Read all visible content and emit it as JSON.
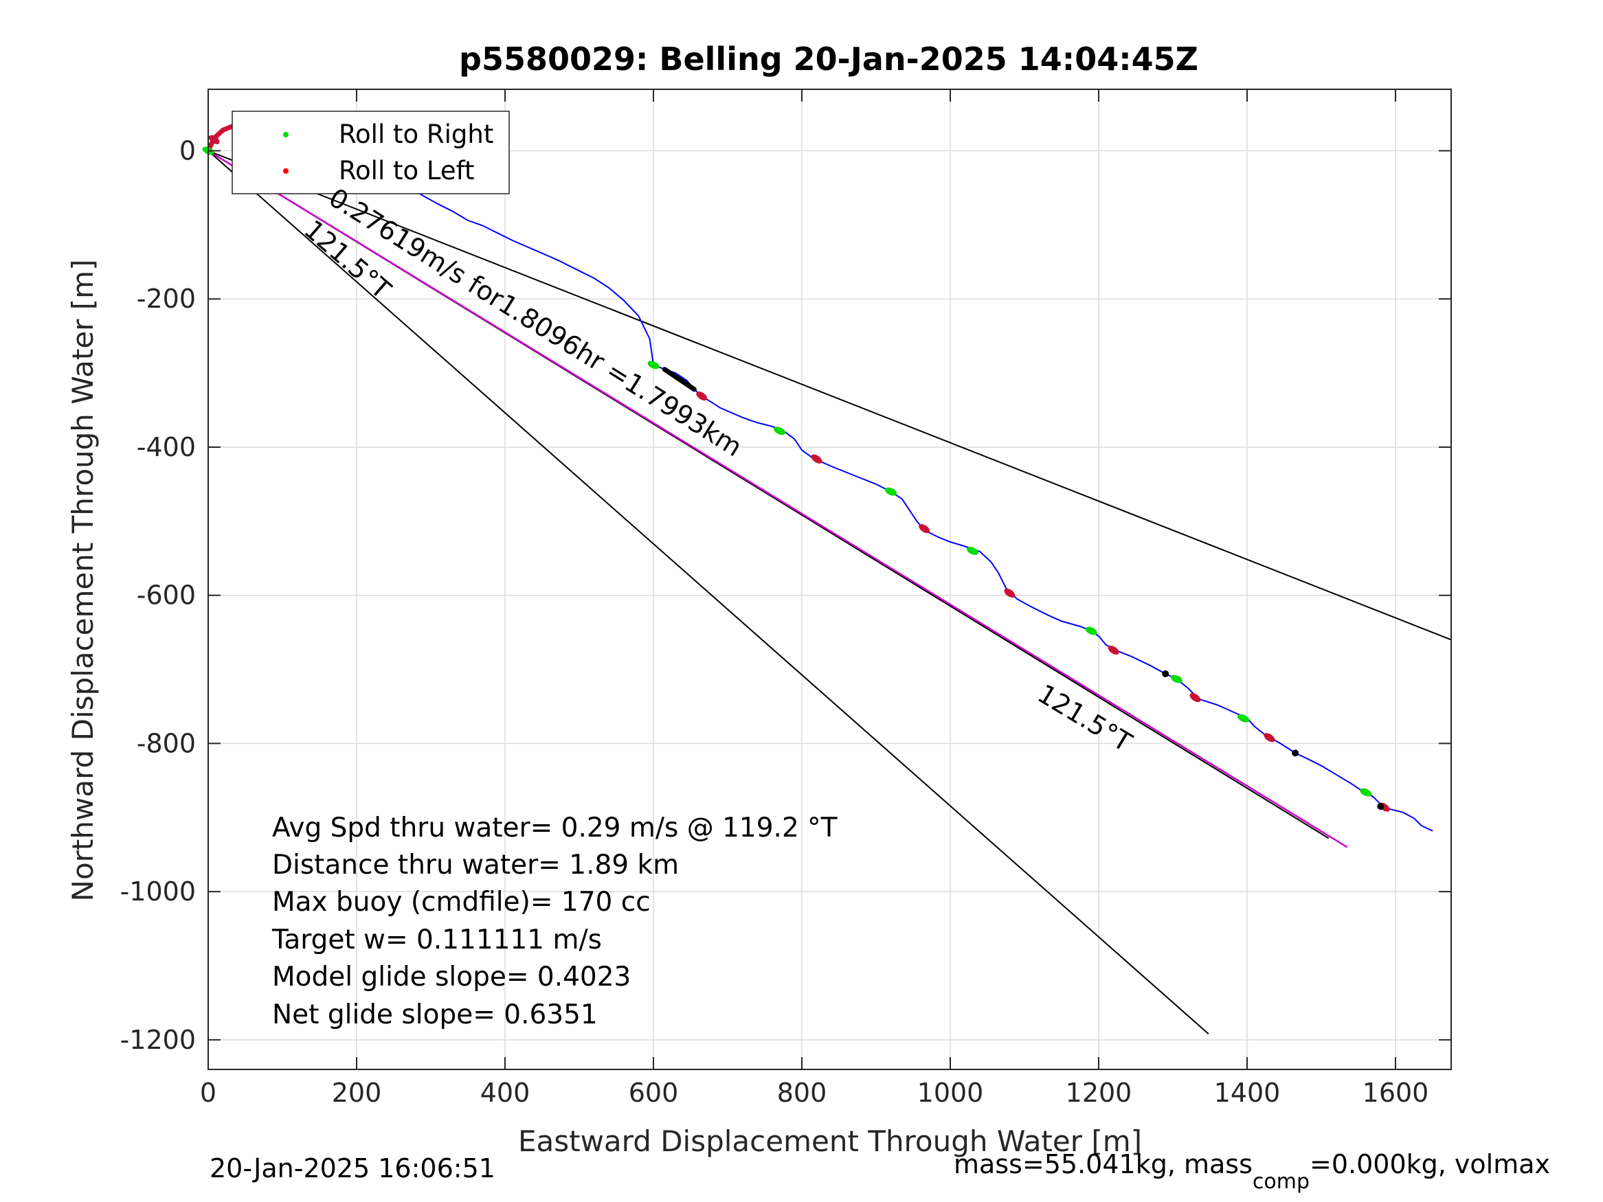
{
  "chart_data": {
    "type": "line",
    "title": "p5580029: Belling 20-Jan-2025 14:04:45Z",
    "xlabel": "Eastward Displacement Through Water [m]",
    "ylabel": "Northward Displacement Through Water [m]",
    "xlim": [
      0,
      1675
    ],
    "ylim": [
      -1240,
      83
    ],
    "xticks": [
      0,
      200,
      400,
      600,
      800,
      1000,
      1200,
      1400,
      1600
    ],
    "yticks": [
      0,
      -200,
      -400,
      -600,
      -800,
      -1000,
      -1200
    ],
    "grid": true,
    "legend": {
      "placement": "top-left",
      "entries": [
        {
          "label": "Roll to Right",
          "color": "#00dd00"
        },
        {
          "label": "Roll to Left",
          "color": "#ff0000"
        }
      ]
    },
    "colors": {
      "track": "#0000ff",
      "heading_line": "#cc00cc",
      "reference": "#000000",
      "roll_right": "#00dd00",
      "roll_left": "#cc1133",
      "pause": "#000000"
    },
    "track": [
      [
        0,
        0
      ],
      [
        8,
        17
      ],
      [
        20,
        28
      ],
      [
        35,
        34
      ],
      [
        50,
        36
      ],
      [
        65,
        34
      ],
      [
        80,
        29
      ],
      [
        95,
        23
      ],
      [
        110,
        18
      ],
      [
        130,
        11
      ],
      [
        150,
        3
      ],
      [
        170,
        -5
      ],
      [
        190,
        -14
      ],
      [
        210,
        -22
      ],
      [
        230,
        -31
      ],
      [
        250,
        -40
      ],
      [
        270,
        -49
      ],
      [
        290,
        -61
      ],
      [
        310,
        -72
      ],
      [
        330,
        -82
      ],
      [
        350,
        -94
      ],
      [
        370,
        -101
      ],
      [
        390,
        -111
      ],
      [
        410,
        -121
      ],
      [
        440,
        -134
      ],
      [
        470,
        -147
      ],
      [
        500,
        -162
      ],
      [
        520,
        -172
      ],
      [
        540,
        -185
      ],
      [
        560,
        -202
      ],
      [
        580,
        -223
      ],
      [
        595,
        -254
      ],
      [
        600,
        -289
      ],
      [
        615,
        -295
      ],
      [
        630,
        -300
      ],
      [
        645,
        -310
      ],
      [
        655,
        -322
      ],
      [
        665,
        -331
      ],
      [
        690,
        -347
      ],
      [
        720,
        -360
      ],
      [
        740,
        -367
      ],
      [
        760,
        -372
      ],
      [
        775,
        -378
      ],
      [
        790,
        -389
      ],
      [
        800,
        -404
      ],
      [
        815,
        -415
      ],
      [
        840,
        -426
      ],
      [
        870,
        -438
      ],
      [
        900,
        -450
      ],
      [
        920,
        -460
      ],
      [
        935,
        -470
      ],
      [
        945,
        -485
      ],
      [
        955,
        -500
      ],
      [
        965,
        -512
      ],
      [
        985,
        -522
      ],
      [
        1000,
        -528
      ],
      [
        1020,
        -534
      ],
      [
        1040,
        -541
      ],
      [
        1055,
        -555
      ],
      [
        1065,
        -570
      ],
      [
        1075,
        -590
      ],
      [
        1090,
        -605
      ],
      [
        1110,
        -616
      ],
      [
        1130,
        -626
      ],
      [
        1150,
        -635
      ],
      [
        1175,
        -642
      ],
      [
        1190,
        -648
      ],
      [
        1200,
        -655
      ],
      [
        1210,
        -667
      ],
      [
        1225,
        -675
      ],
      [
        1245,
        -683
      ],
      [
        1270,
        -695
      ],
      [
        1290,
        -706
      ],
      [
        1305,
        -713
      ],
      [
        1320,
        -725
      ],
      [
        1335,
        -740
      ],
      [
        1360,
        -748
      ],
      [
        1380,
        -757
      ],
      [
        1400,
        -766
      ],
      [
        1410,
        -777
      ],
      [
        1425,
        -789
      ],
      [
        1445,
        -800
      ],
      [
        1465,
        -813
      ],
      [
        1480,
        -820
      ],
      [
        1500,
        -830
      ],
      [
        1520,
        -842
      ],
      [
        1540,
        -854
      ],
      [
        1555,
        -864
      ],
      [
        1570,
        -872
      ],
      [
        1580,
        -882
      ],
      [
        1590,
        -888
      ],
      [
        1610,
        -893
      ],
      [
        1625,
        -901
      ],
      [
        1635,
        -911
      ],
      [
        1650,
        -918
      ]
    ],
    "roll_right_points": [
      [
        0,
        0
      ],
      [
        105,
        22
      ],
      [
        600,
        -289
      ],
      [
        770,
        -378
      ],
      [
        920,
        -460
      ],
      [
        1030,
        -540
      ],
      [
        1190,
        -648
      ],
      [
        1305,
        -713
      ],
      [
        1395,
        -766
      ],
      [
        1560,
        -866
      ]
    ],
    "roll_left_points": [
      [
        8,
        15
      ],
      [
        665,
        -331
      ],
      [
        820,
        -416
      ],
      [
        965,
        -510
      ],
      [
        1080,
        -597
      ],
      [
        1220,
        -674
      ],
      [
        1330,
        -738
      ],
      [
        1430,
        -792
      ],
      [
        1585,
        -886
      ]
    ],
    "pause_points": [
      [
        1290,
        -706
      ],
      [
        1465,
        -813
      ],
      [
        1580,
        -885
      ]
    ],
    "reference_lines": [
      {
        "from": [
          0,
          0
        ],
        "to": [
          1675,
          -660
        ]
      },
      {
        "from": [
          0,
          0
        ],
        "to": [
          1510,
          -928
        ]
      },
      {
        "from": [
          0,
          0
        ],
        "to": [
          1348,
          -1192
        ]
      }
    ],
    "heading_line": {
      "from": [
        0,
        0
      ],
      "to": [
        1535,
        -940
      ]
    },
    "annotations": [
      {
        "text": "0.27619m/s for1.8096hr =1.7993km",
        "x": 160,
        "y": -70
      },
      {
        "text": "121.5°T",
        "x": 127,
        "y": -110
      },
      {
        "text": "121.5°T",
        "x": 1115,
        "y": -740
      }
    ],
    "stats": [
      "Avg Spd thru water=  0.29 m/s @ 119.2 °T",
      "Distance thru water=  1.89 km",
      "Max buoy (cmdfile)= 170 cc",
      "Target w= 0.111111 m/s",
      "Model glide slope= 0.4023",
      "Net glide slope= 0.6351"
    ],
    "footer_left": "20-Jan-2025 16:06:51",
    "footer_right": {
      "main": "mass=55.041kg, mass",
      "sub": "comp",
      "rest": "=0.000kg, volmax"
    }
  }
}
